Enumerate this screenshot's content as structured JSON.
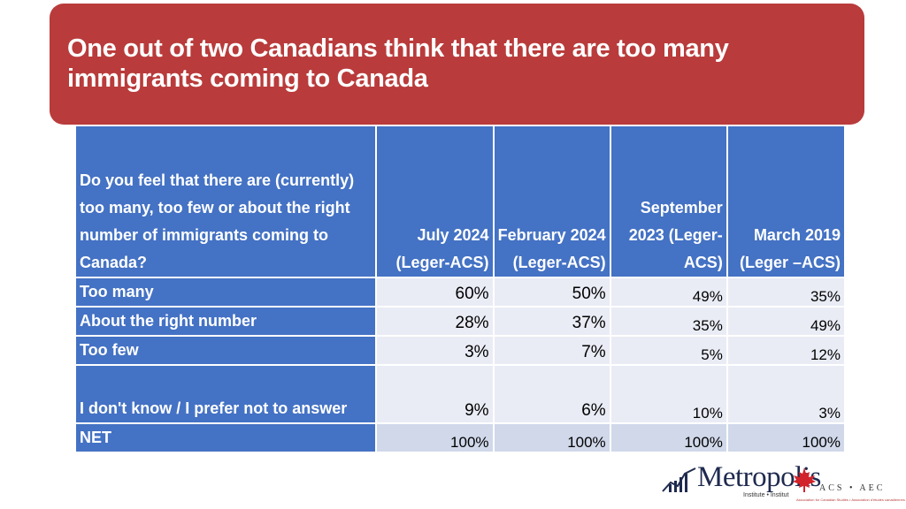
{
  "title": "One out of two Canadians think that there are too many immigrants coming to Canada",
  "table": {
    "question": "Do you feel that there are (currently) too many, too few or about the right number of immigrants coming to Canada?",
    "columns": [
      "July 2024 (Leger-ACS)",
      "February 2024 (Leger-ACS)",
      "September 2023 (Leger-ACS)",
      "March 2019 (Leger –ACS)"
    ],
    "rows": [
      {
        "label": "Too many",
        "values": [
          "60%",
          "50%",
          "49%",
          "35%"
        ]
      },
      {
        "label": "About the right number",
        "values": [
          "28%",
          "37%",
          "35%",
          "49%"
        ]
      },
      {
        "label": "Too few",
        "values": [
          "3%",
          "7%",
          "5%",
          "12%"
        ]
      },
      {
        "label": "I don't know / I prefer not to answer",
        "values": [
          "9%",
          "6%",
          "10%",
          "3%"
        ]
      },
      {
        "label": "NET",
        "values": [
          "100%",
          "100%",
          "100%",
          "100%"
        ]
      }
    ]
  },
  "logos": {
    "metropolis": "Metropolis",
    "metropolis_sub": "Institute • Institut",
    "acs": "ACS • AEC",
    "acs_sub": "Association for Canadian Studies • Association d'études canadiennes"
  },
  "colors": {
    "banner": "#b93b3b",
    "header": "#4472c4",
    "row_light": "#e9ecf5",
    "row_mid": "#d0d8ea"
  }
}
